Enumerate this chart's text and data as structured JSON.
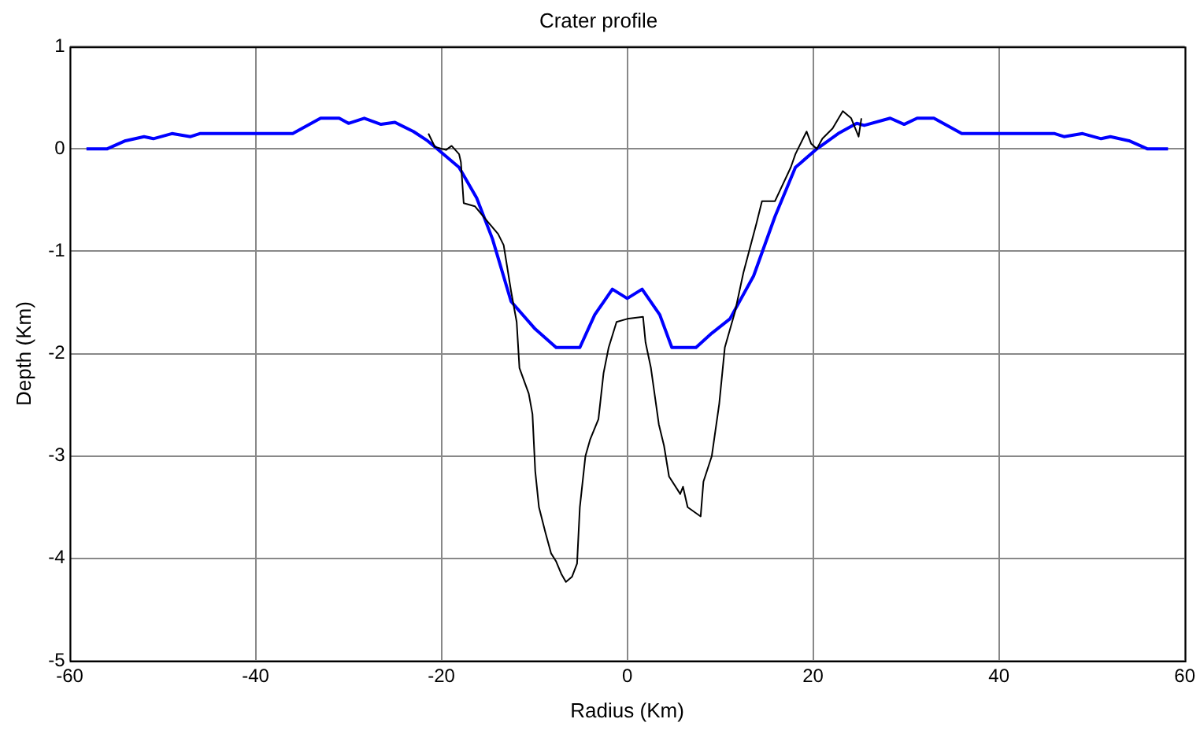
{
  "chart_data": {
    "type": "line",
    "title": "Crater profile",
    "xlabel": "Radius (Km)",
    "ylabel": "Depth (Km)",
    "xlim": [
      -60,
      60
    ],
    "xticks": [
      -60,
      -40,
      -20,
      0,
      20,
      40,
      60
    ],
    "ylim": [
      -5,
      1
    ],
    "yticks": [
      -5,
      -4,
      -3,
      -2,
      -1,
      0,
      1
    ],
    "grid": true,
    "legend": false,
    "marker": "none",
    "series": [
      {
        "color": "#000000",
        "x": [
          -21.4,
          -20.7,
          -19.5,
          -18.9,
          -18.1,
          -17.9,
          -17.6,
          -16.4,
          -15.3,
          -13.9,
          -13.3,
          -12.5,
          -11.9,
          -11.6,
          -10.6,
          -10.2,
          -9.9,
          -9.5,
          -8.8,
          -8.2,
          -7.65,
          -7.1,
          -6.6,
          -5.95,
          -5.4,
          -5.1,
          -4.5,
          -4.0,
          -3.1,
          -2.55,
          -2.0,
          -1.15,
          0,
          1.7,
          1.97,
          2.55,
          3.4,
          3.96,
          4.5,
          5.7,
          6.0,
          6.5,
          7.9,
          8.2,
          9.1,
          9.9,
          10.5,
          11.6,
          12.5,
          13.9,
          14.5,
          15.9,
          17.6,
          18.1,
          19.3,
          19.8,
          20.4,
          21,
          22.1,
          23.2,
          24.1,
          24.9,
          25.2
        ],
        "values": [
          0.15,
          0.02,
          -0.01,
          0.03,
          -0.05,
          -0.13,
          -0.53,
          -0.56,
          -0.68,
          -0.83,
          -0.94,
          -1.39,
          -1.69,
          -2.14,
          -2.39,
          -2.59,
          -3.15,
          -3.5,
          -3.75,
          -3.95,
          -4.03,
          -4.15,
          -4.23,
          -4.18,
          -4.05,
          -3.5,
          -3.0,
          -2.84,
          -2.64,
          -2.19,
          -1.94,
          -1.69,
          -1.66,
          -1.64,
          -1.89,
          -2.14,
          -2.69,
          -2.9,
          -3.2,
          -3.37,
          -3.3,
          -3.5,
          -3.59,
          -3.25,
          -3.0,
          -2.49,
          -1.94,
          -1.59,
          -1.21,
          -0.73,
          -0.51,
          -0.51,
          -0.18,
          -0.05,
          0.17,
          0.05,
          0.0,
          0.1,
          0.2,
          0.37,
          0.3,
          0.12,
          0.3
        ]
      },
      {
        "color": "#0000ff",
        "x": [
          -58.2,
          -56,
          -54,
          -52,
          -51,
          -49,
          -47,
          -46,
          -36,
          -34,
          -33,
          -31,
          -30,
          -28.3,
          -26.5,
          -25,
          -23,
          -21.5,
          -20.7,
          -18.1,
          -16.2,
          -14.5,
          -12.5,
          -9.9,
          -7.65,
          -5.1,
          -3.5,
          -1.6,
          0,
          1.6,
          3.5,
          4.8,
          7.4,
          9.1,
          11.05,
          13.6,
          15.9,
          18.1,
          20.4,
          22.7,
          24.7,
          25.5,
          28.3,
          29.8,
          31.2,
          33,
          34,
          36,
          46,
          47,
          49,
          51,
          52,
          54,
          56,
          58.2
        ],
        "values": [
          0,
          0,
          0.08,
          0.12,
          0.1,
          0.15,
          0.12,
          0.15,
          0.15,
          0.25,
          0.3,
          0.3,
          0.25,
          0.3,
          0.24,
          0.26,
          0.17,
          0.08,
          0.02,
          -0.18,
          -0.48,
          -0.88,
          -1.49,
          -1.76,
          -1.94,
          -1.94,
          -1.62,
          -1.37,
          -1.46,
          -1.37,
          -1.62,
          -1.94,
          -1.94,
          -1.8,
          -1.66,
          -1.24,
          -0.66,
          -0.18,
          0,
          0.15,
          0.25,
          0.23,
          0.3,
          0.24,
          0.3,
          0.3,
          0.25,
          0.15,
          0.15,
          0.12,
          0.15,
          0.1,
          0.12,
          0.08,
          0,
          0
        ]
      }
    ]
  }
}
